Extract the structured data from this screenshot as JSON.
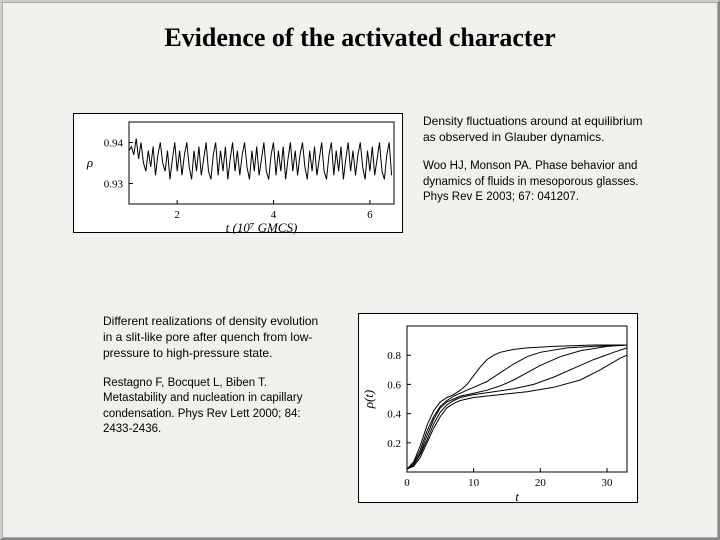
{
  "title": "Evidence of the activated character",
  "block1": {
    "caption": "Density fluctuations around at equilibrium as observed in Glauber dynamics.",
    "citation": "Woo HJ, Monson PA.\nPhase behavior and dynamics of fluids in mesoporous glasses. Phys Rev E 2003; 67: 041207."
  },
  "block2": {
    "caption": "Different realizations of density evolution in a slit-like pore after quench from low-pressure to high-pressure state.",
    "citation": "Restagno F, Bocquet L, Biben T.\nMetastability and nucleation in capillary condensation.\nPhys Rev Lett 2000; 84: 2433-2436."
  },
  "chart1": {
    "type": "line",
    "ylabel": "ρ",
    "yticks": [
      0.93,
      0.94
    ],
    "ylim": [
      0.925,
      0.945
    ],
    "xlabel": "t (10⁷ GMCS)",
    "xticks": [
      2,
      4,
      6
    ],
    "xlim": [
      1,
      6.5
    ],
    "background_color": "#ffffff",
    "axis_color": "#000000",
    "line_color": "#000000",
    "label_fontsize": 13,
    "tick_fontsize": 11,
    "data": [
      [
        1.0,
        0.938
      ],
      [
        1.05,
        0.939
      ],
      [
        1.1,
        0.937
      ],
      [
        1.15,
        0.941
      ],
      [
        1.2,
        0.936
      ],
      [
        1.25,
        0.94
      ],
      [
        1.3,
        0.935
      ],
      [
        1.35,
        0.933
      ],
      [
        1.4,
        0.938
      ],
      [
        1.45,
        0.934
      ],
      [
        1.5,
        0.939
      ],
      [
        1.55,
        0.932
      ],
      [
        1.6,
        0.937
      ],
      [
        1.65,
        0.94
      ],
      [
        1.7,
        0.935
      ],
      [
        1.75,
        0.933
      ],
      [
        1.8,
        0.938
      ],
      [
        1.85,
        0.931
      ],
      [
        1.9,
        0.936
      ],
      [
        1.95,
        0.94
      ],
      [
        2.0,
        0.933
      ],
      [
        2.05,
        0.938
      ],
      [
        2.1,
        0.932
      ],
      [
        2.15,
        0.937
      ],
      [
        2.2,
        0.94
      ],
      [
        2.25,
        0.934
      ],
      [
        2.3,
        0.931
      ],
      [
        2.35,
        0.938
      ],
      [
        2.4,
        0.933
      ],
      [
        2.45,
        0.939
      ],
      [
        2.5,
        0.932
      ],
      [
        2.55,
        0.936
      ],
      [
        2.6,
        0.94
      ],
      [
        2.65,
        0.933
      ],
      [
        2.7,
        0.931
      ],
      [
        2.75,
        0.937
      ],
      [
        2.8,
        0.94
      ],
      [
        2.85,
        0.932
      ],
      [
        2.9,
        0.938
      ],
      [
        2.95,
        0.933
      ],
      [
        3.0,
        0.939
      ],
      [
        3.05,
        0.931
      ],
      [
        3.1,
        0.936
      ],
      [
        3.15,
        0.94
      ],
      [
        3.2,
        0.933
      ],
      [
        3.25,
        0.938
      ],
      [
        3.3,
        0.932
      ],
      [
        3.35,
        0.937
      ],
      [
        3.4,
        0.94
      ],
      [
        3.45,
        0.934
      ],
      [
        3.5,
        0.931
      ],
      [
        3.55,
        0.938
      ],
      [
        3.6,
        0.933
      ],
      [
        3.65,
        0.939
      ],
      [
        3.7,
        0.932
      ],
      [
        3.75,
        0.936
      ],
      [
        3.8,
        0.94
      ],
      [
        3.85,
        0.933
      ],
      [
        3.9,
        0.931
      ],
      [
        3.95,
        0.937
      ],
      [
        4.0,
        0.94
      ],
      [
        4.05,
        0.932
      ],
      [
        4.1,
        0.938
      ],
      [
        4.15,
        0.933
      ],
      [
        4.2,
        0.939
      ],
      [
        4.25,
        0.931
      ],
      [
        4.3,
        0.936
      ],
      [
        4.35,
        0.94
      ],
      [
        4.4,
        0.933
      ],
      [
        4.45,
        0.938
      ],
      [
        4.5,
        0.932
      ],
      [
        4.55,
        0.937
      ],
      [
        4.6,
        0.94
      ],
      [
        4.65,
        0.934
      ],
      [
        4.7,
        0.931
      ],
      [
        4.75,
        0.938
      ],
      [
        4.8,
        0.933
      ],
      [
        4.85,
        0.939
      ],
      [
        4.9,
        0.932
      ],
      [
        4.95,
        0.936
      ],
      [
        5.0,
        0.94
      ],
      [
        5.05,
        0.933
      ],
      [
        5.1,
        0.931
      ],
      [
        5.15,
        0.937
      ],
      [
        5.2,
        0.94
      ],
      [
        5.25,
        0.932
      ],
      [
        5.3,
        0.938
      ],
      [
        5.35,
        0.933
      ],
      [
        5.4,
        0.939
      ],
      [
        5.45,
        0.931
      ],
      [
        5.5,
        0.936
      ],
      [
        5.55,
        0.94
      ],
      [
        5.6,
        0.933
      ],
      [
        5.65,
        0.938
      ],
      [
        5.7,
        0.932
      ],
      [
        5.75,
        0.937
      ],
      [
        5.8,
        0.94
      ],
      [
        5.85,
        0.934
      ],
      [
        5.9,
        0.931
      ],
      [
        5.95,
        0.938
      ],
      [
        6.0,
        0.933
      ],
      [
        6.05,
        0.939
      ],
      [
        6.1,
        0.932
      ],
      [
        6.15,
        0.936
      ],
      [
        6.2,
        0.94
      ],
      [
        6.25,
        0.933
      ],
      [
        6.3,
        0.931
      ],
      [
        6.35,
        0.937
      ],
      [
        6.4,
        0.94
      ],
      [
        6.45,
        0.932
      ]
    ]
  },
  "chart2": {
    "type": "line",
    "ylabel": "ρ(t)",
    "yticks": [
      0.2,
      0.4,
      0.6,
      0.8
    ],
    "ylim": [
      0.0,
      1.0
    ],
    "xlabel": "t",
    "xticks": [
      0,
      10,
      20,
      30
    ],
    "xlim": [
      0,
      33
    ],
    "background_color": "#ffffff",
    "axis_color": "#000000",
    "line_color": "#000000",
    "label_fontsize": 13,
    "tick_fontsize": 11,
    "series": [
      [
        [
          0,
          0.02
        ],
        [
          1,
          0.07
        ],
        [
          2,
          0.18
        ],
        [
          3,
          0.32
        ],
        [
          4,
          0.42
        ],
        [
          5,
          0.48
        ],
        [
          6,
          0.51
        ],
        [
          7,
          0.53
        ],
        [
          8,
          0.56
        ],
        [
          9,
          0.6
        ],
        [
          10,
          0.66
        ],
        [
          11,
          0.72
        ],
        [
          12,
          0.77
        ],
        [
          13,
          0.8
        ],
        [
          14,
          0.82
        ],
        [
          16,
          0.84
        ],
        [
          18,
          0.85
        ],
        [
          22,
          0.86
        ],
        [
          28,
          0.87
        ],
        [
          33,
          0.87
        ]
      ],
      [
        [
          0,
          0.02
        ],
        [
          1,
          0.06
        ],
        [
          2,
          0.15
        ],
        [
          3,
          0.28
        ],
        [
          4,
          0.38
        ],
        [
          5,
          0.45
        ],
        [
          6,
          0.49
        ],
        [
          7,
          0.52
        ],
        [
          8,
          0.54
        ],
        [
          9,
          0.56
        ],
        [
          10,
          0.58
        ],
        [
          12,
          0.62
        ],
        [
          14,
          0.68
        ],
        [
          16,
          0.74
        ],
        [
          18,
          0.79
        ],
        [
          20,
          0.82
        ],
        [
          24,
          0.85
        ],
        [
          28,
          0.86
        ],
        [
          33,
          0.87
        ]
      ],
      [
        [
          0,
          0.02
        ],
        [
          1,
          0.05
        ],
        [
          2,
          0.13
        ],
        [
          3,
          0.25
        ],
        [
          4,
          0.36
        ],
        [
          5,
          0.44
        ],
        [
          6,
          0.48
        ],
        [
          7,
          0.5
        ],
        [
          8,
          0.52
        ],
        [
          10,
          0.54
        ],
        [
          12,
          0.56
        ],
        [
          14,
          0.59
        ],
        [
          16,
          0.63
        ],
        [
          18,
          0.68
        ],
        [
          20,
          0.73
        ],
        [
          23,
          0.79
        ],
        [
          26,
          0.83
        ],
        [
          30,
          0.86
        ],
        [
          33,
          0.87
        ]
      ],
      [
        [
          0,
          0.02
        ],
        [
          1,
          0.05
        ],
        [
          2,
          0.12
        ],
        [
          3,
          0.22
        ],
        [
          4,
          0.33
        ],
        [
          5,
          0.41
        ],
        [
          6,
          0.46
        ],
        [
          7,
          0.49
        ],
        [
          8,
          0.51
        ],
        [
          10,
          0.53
        ],
        [
          13,
          0.55
        ],
        [
          16,
          0.57
        ],
        [
          19,
          0.6
        ],
        [
          22,
          0.65
        ],
        [
          25,
          0.71
        ],
        [
          28,
          0.77
        ],
        [
          31,
          0.82
        ],
        [
          33,
          0.85
        ]
      ],
      [
        [
          0,
          0.02
        ],
        [
          1,
          0.04
        ],
        [
          2,
          0.1
        ],
        [
          3,
          0.2
        ],
        [
          4,
          0.3
        ],
        [
          5,
          0.38
        ],
        [
          6,
          0.44
        ],
        [
          7,
          0.47
        ],
        [
          8,
          0.49
        ],
        [
          10,
          0.51
        ],
        [
          14,
          0.53
        ],
        [
          18,
          0.55
        ],
        [
          22,
          0.58
        ],
        [
          26,
          0.63
        ],
        [
          29,
          0.7
        ],
        [
          32,
          0.78
        ],
        [
          33,
          0.8
        ]
      ]
    ]
  }
}
